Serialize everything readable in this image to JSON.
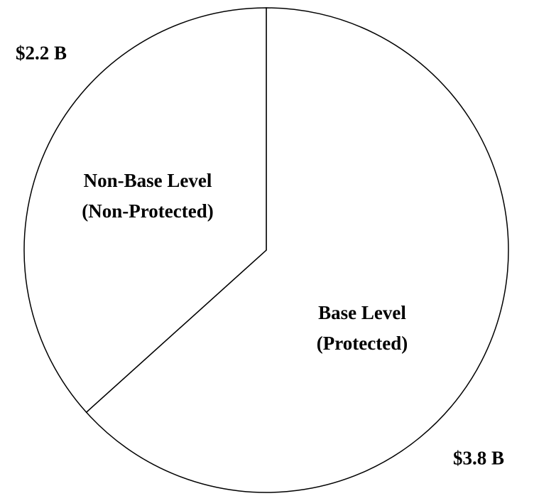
{
  "chart_data": {
    "type": "pie",
    "categories": [
      "Base Level\n(Protected)",
      "Non-Base Level\n(Non-Protected)"
    ],
    "values": [
      3.8,
      2.2
    ],
    "value_labels": [
      "$3.8 B",
      "$2.2 B"
    ],
    "colors": [
      "#ffffff",
      "#ffffff"
    ]
  }
}
